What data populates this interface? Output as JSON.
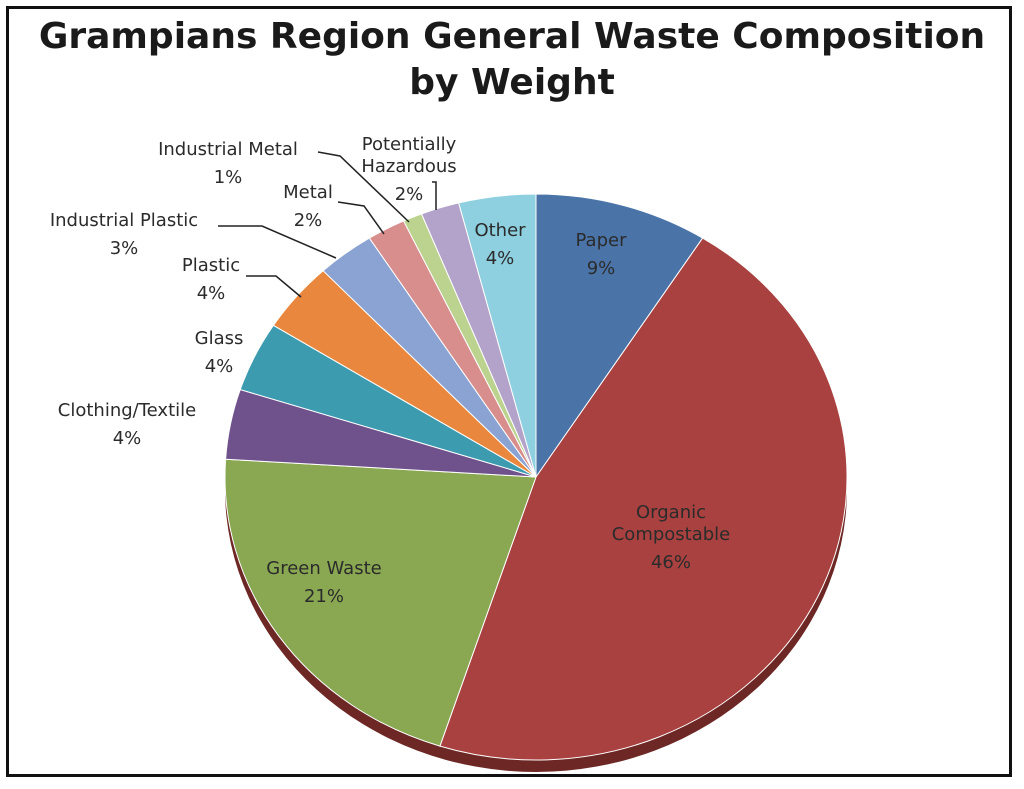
{
  "chart_data": {
    "type": "pie",
    "title_lines": [
      "Grampians Region General Waste Composition",
      "by Weight"
    ],
    "slices": [
      {
        "label": "Paper",
        "value": 9,
        "value_label": "9%",
        "color": "#4a74a8"
      },
      {
        "label": "Organic Compostable",
        "value": 46,
        "value_label": "46%",
        "color": "#a8413f"
      },
      {
        "label": "Green Waste",
        "value": 21,
        "value_label": "21%",
        "color": "#8aa852"
      },
      {
        "label": "Clothing/Textile",
        "value": 4,
        "value_label": "4%",
        "color": "#6f528c"
      },
      {
        "label": "Glass",
        "value": 4,
        "value_label": "4%",
        "color": "#3d9bb0"
      },
      {
        "label": "Plastic",
        "value": 4,
        "value_label": "4%",
        "color": "#e8873d"
      },
      {
        "label": "Industrial Plastic",
        "value": 3,
        "value_label": "3%",
        "color": "#8aa3d3"
      },
      {
        "label": "Metal",
        "value": 2,
        "value_label": "2%",
        "color": "#d88e8c"
      },
      {
        "label": "Industrial Metal",
        "value": 1,
        "value_label": "1%",
        "color": "#bcd38f"
      },
      {
        "label": "Potentially Hazardous",
        "value": 2,
        "value_label": "2%",
        "color": "#b3a2c9"
      },
      {
        "label": "Other",
        "value": 4,
        "value_label": "4%",
        "color": "#8ed0e0"
      }
    ]
  }
}
